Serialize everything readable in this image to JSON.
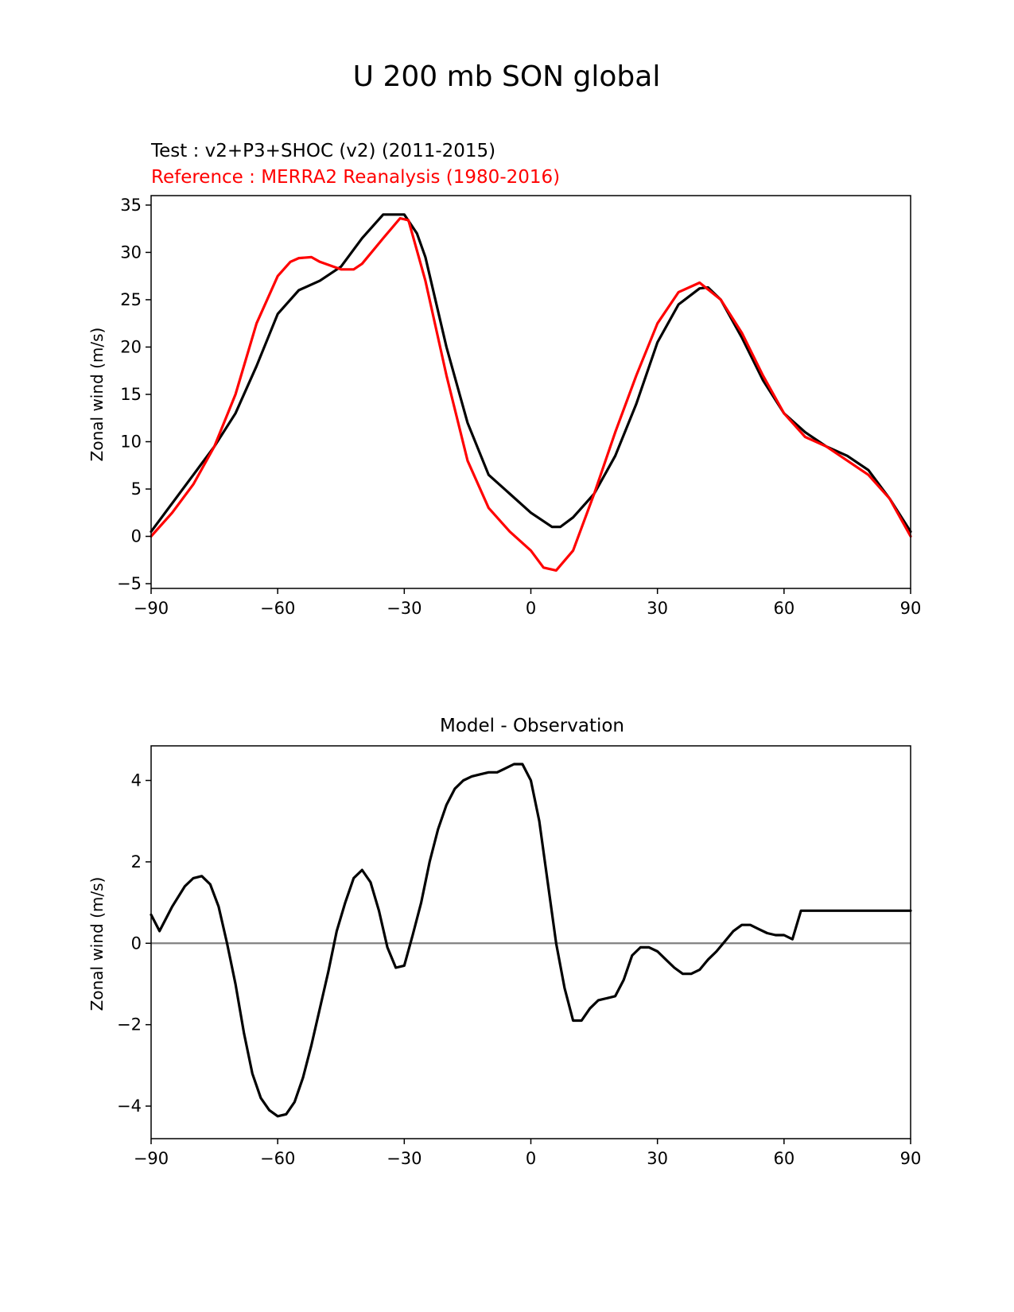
{
  "figure_title": "U 200 mb SON global",
  "chart_data": [
    {
      "type": "line",
      "title_lines": [
        {
          "text": "Test : v2+P3+SHOC (v2) (2011-2015)",
          "color": "#000000"
        },
        {
          "text": "Reference : MERRA2 Reanalysis (1980-2016)",
          "color": "#ff0000"
        }
      ],
      "xlabel": "",
      "ylabel": "Zonal wind (m/s)",
      "xlim": [
        -90,
        90
      ],
      "ylim": [
        -5.5,
        36
      ],
      "xticks": [
        -90,
        -60,
        -30,
        0,
        30,
        60,
        90
      ],
      "xtick_labels": [
        "−90",
        "−60",
        "−30",
        "0",
        "30",
        "60",
        "90"
      ],
      "yticks": [
        -5,
        0,
        5,
        10,
        15,
        20,
        25,
        30,
        35
      ],
      "ytick_labels": [
        "−5",
        "0",
        "5",
        "10",
        "15",
        "20",
        "25",
        "30",
        "35"
      ],
      "grid": false,
      "series": [
        {
          "name": "Test : v2+P3+SHOC (v2) (2011-2015)",
          "color": "#000000",
          "x": [
            -90,
            -85,
            -80,
            -75,
            -70,
            -65,
            -60,
            -55,
            -50,
            -45,
            -40,
            -35,
            -30,
            -27,
            -25,
            -20,
            -15,
            -10,
            -5,
            0,
            5,
            7,
            10,
            15,
            20,
            25,
            30,
            35,
            40,
            42,
            45,
            50,
            55,
            60,
            65,
            70,
            75,
            80,
            85,
            90
          ],
          "y": [
            0.5,
            3.5,
            6.5,
            9.5,
            13.0,
            18.0,
            23.5,
            26.0,
            27.0,
            28.5,
            31.5,
            34.0,
            34.0,
            32.0,
            29.5,
            20.0,
            12.0,
            6.5,
            4.5,
            2.5,
            1.0,
            1.0,
            2.0,
            4.5,
            8.5,
            14.0,
            20.5,
            24.5,
            26.2,
            26.3,
            25.0,
            21.0,
            16.5,
            13.0,
            11.0,
            9.5,
            8.5,
            7.0,
            4.0,
            0.5
          ]
        },
        {
          "name": "Reference : MERRA2 Reanalysis (1980-2016)",
          "color": "#ff0000",
          "x": [
            -90,
            -85,
            -80,
            -75,
            -70,
            -65,
            -60,
            -57,
            -55,
            -52,
            -50,
            -45,
            -42,
            -40,
            -35,
            -31,
            -29,
            -25,
            -20,
            -15,
            -10,
            -5,
            0,
            3,
            6,
            10,
            15,
            20,
            25,
            30,
            35,
            40,
            45,
            50,
            55,
            60,
            65,
            70,
            75,
            80,
            85,
            90
          ],
          "y": [
            0.0,
            2.5,
            5.5,
            9.5,
            15.0,
            22.5,
            27.5,
            29.0,
            29.4,
            29.5,
            29.0,
            28.2,
            28.2,
            28.8,
            31.5,
            33.6,
            33.4,
            27.0,
            17.0,
            8.0,
            3.0,
            0.5,
            -1.5,
            -3.3,
            -3.6,
            -1.5,
            4.5,
            11.0,
            17.0,
            22.5,
            25.8,
            26.8,
            25.0,
            21.5,
            17.0,
            13.0,
            10.5,
            9.5,
            8.0,
            6.5,
            4.0,
            0.0
          ]
        }
      ]
    },
    {
      "type": "line",
      "title": "Model - Observation",
      "xlabel": "",
      "ylabel": "Zonal wind (m/s)",
      "xlim": [
        -90,
        90
      ],
      "ylim": [
        -4.8,
        4.85
      ],
      "xticks": [
        -90,
        -60,
        -30,
        0,
        30,
        60,
        90
      ],
      "xtick_labels": [
        "−90",
        "−60",
        "−30",
        "0",
        "30",
        "60",
        "90"
      ],
      "yticks": [
        -4,
        -2,
        0,
        2,
        4
      ],
      "ytick_labels": [
        "−4",
        "−2",
        "0",
        "2",
        "4"
      ],
      "grid": false,
      "zero_line_color": "#808080",
      "series": [
        {
          "name": "Model - Observation",
          "color": "#000000",
          "x": [
            -90,
            -88,
            -85,
            -82,
            -80,
            -78,
            -76,
            -74,
            -72,
            -70,
            -68,
            -66,
            -64,
            -62,
            -60,
            -58,
            -56,
            -54,
            -52,
            -50,
            -48,
            -46,
            -44,
            -42,
            -40,
            -38,
            -36,
            -34,
            -32,
            -30,
            -28,
            -26,
            -25,
            -24,
            -22,
            -20,
            -18,
            -16,
            -14,
            -12,
            -10,
            -8,
            -6,
            -4,
            -2,
            0,
            2,
            4,
            6,
            8,
            10,
            12,
            14,
            16,
            18,
            20,
            22,
            24,
            26,
            28,
            30,
            32,
            34,
            36,
            38,
            40,
            42,
            44,
            46,
            48,
            50,
            52,
            54,
            56,
            58,
            60,
            62,
            64,
            66,
            68,
            70,
            72,
            74,
            76,
            78,
            80,
            82,
            84,
            86,
            88,
            90
          ],
          "y": [
            0.7,
            0.3,
            0.9,
            1.4,
            1.6,
            1.65,
            1.45,
            0.9,
            0.0,
            -1.0,
            -2.2,
            -3.2,
            -3.8,
            -4.1,
            -4.25,
            -4.2,
            -3.9,
            -3.3,
            -2.5,
            -1.6,
            -0.7,
            0.3,
            1.0,
            1.6,
            1.8,
            1.5,
            0.8,
            -0.1,
            -0.6,
            -0.55,
            0.2,
            1.0,
            1.5,
            2.0,
            2.8,
            3.4,
            3.8,
            4.0,
            4.1,
            4.15,
            4.2,
            4.2,
            4.3,
            4.4,
            4.4,
            4.0,
            3.0,
            1.5,
            0.0,
            -1.1,
            -1.9,
            -1.9,
            -1.6,
            -1.4,
            -1.35,
            -1.3,
            -0.9,
            -0.3,
            -0.1,
            -0.1,
            -0.2,
            -0.4,
            -0.6,
            -0.75,
            -0.75,
            -0.65,
            -0.4,
            -0.2,
            0.05,
            0.3,
            0.45,
            0.45,
            0.35,
            0.25,
            0.2,
            0.2,
            0.1,
            0.8,
            0.8,
            0.8,
            0.8,
            0.8,
            0.8,
            0.8,
            0.8,
            0.8,
            0.8,
            0.8,
            0.8,
            0.8,
            0.8
          ]
        }
      ]
    }
  ]
}
